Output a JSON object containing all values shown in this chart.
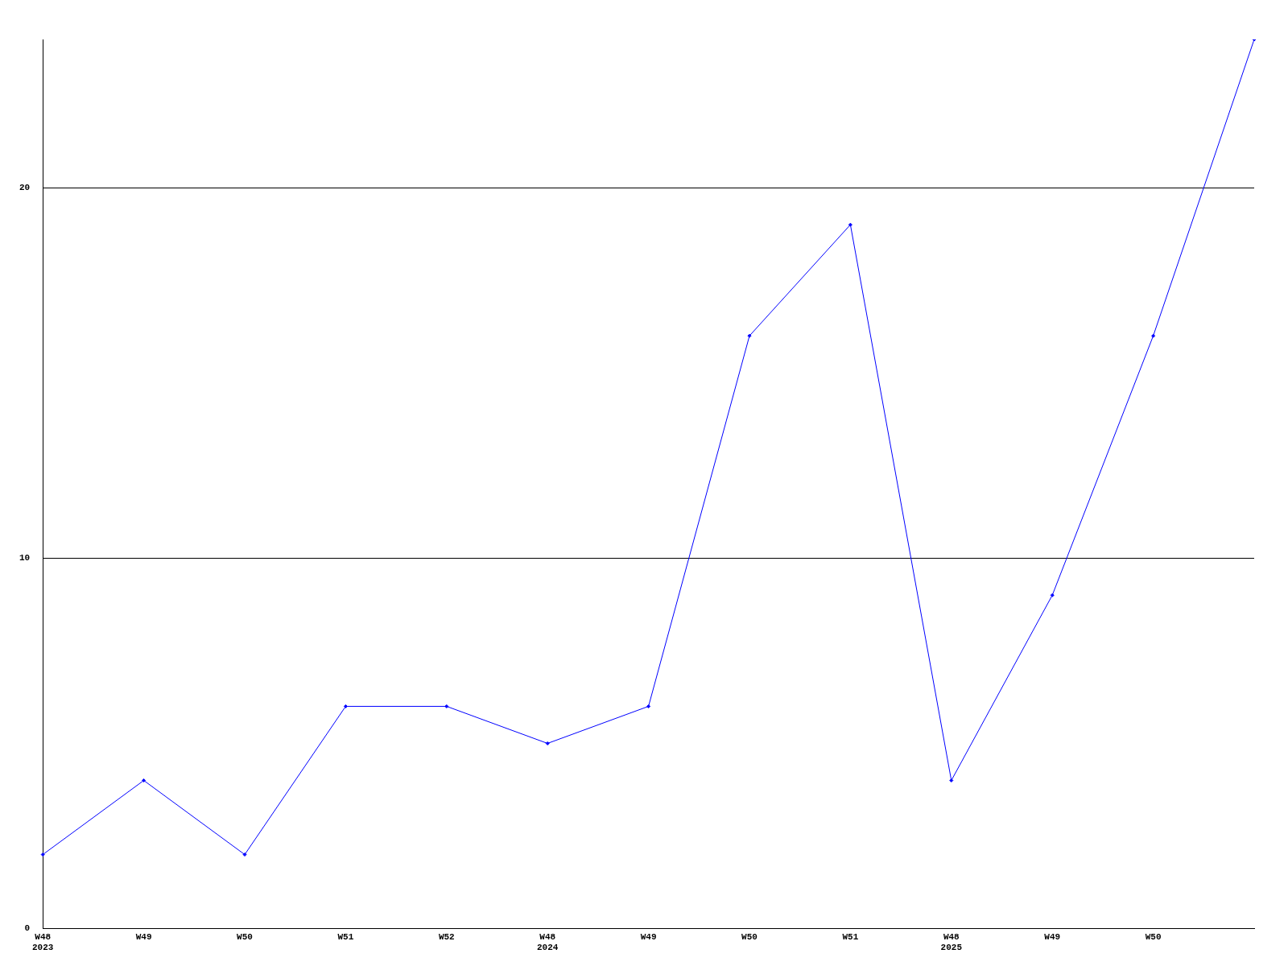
{
  "chart_data": {
    "type": "line",
    "categories": [
      "W48\n2023",
      "W49",
      "W50",
      "W51",
      "W52",
      "W48\n2024",
      "W49",
      "W50",
      "W51",
      "W48\n2025",
      "W49",
      "W50",
      null
    ],
    "series": [
      {
        "color": "#0000ff",
        "values": [
          2,
          4,
          2,
          6,
          6,
          5,
          6,
          16,
          19,
          4,
          9,
          16,
          24
        ]
      }
    ],
    "ylim": [
      0,
      24
    ],
    "yticks": [
      0,
      10,
      20
    ],
    "grid": "y",
    "legend": false,
    "marker": "diamond",
    "line_style": "solid"
  }
}
